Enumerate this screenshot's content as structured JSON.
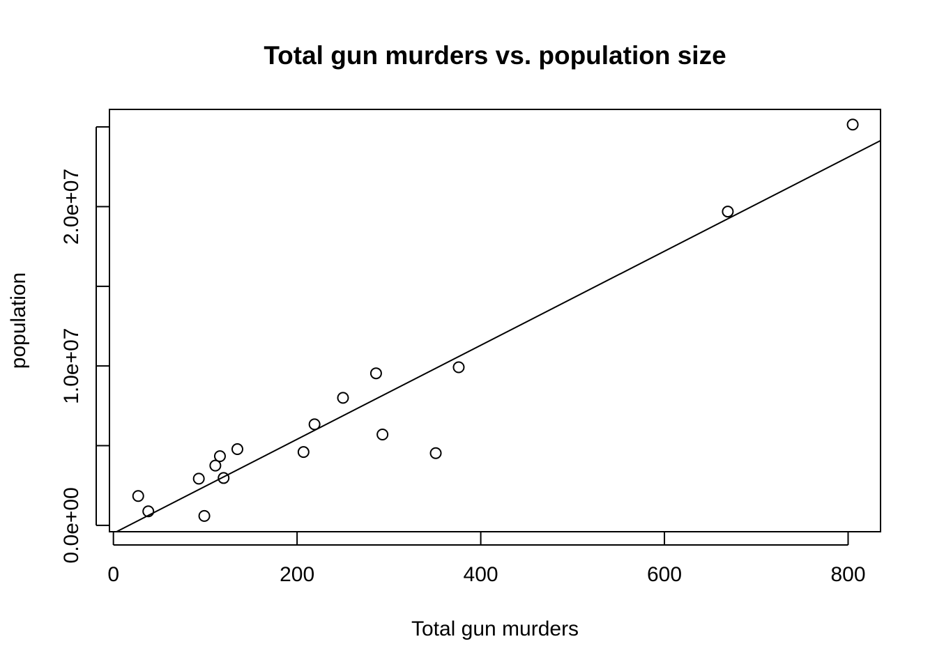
{
  "chart_data": {
    "type": "scatter",
    "title": "Total gun murders vs. population size",
    "xlabel": "Total gun murders",
    "ylabel": "population",
    "xlim": [
      -4.3,
      835.3
    ],
    "ylim": [
      -400000,
      26100000
    ],
    "x_ticks": [
      {
        "value": 0,
        "label": "0"
      },
      {
        "value": 200,
        "label": "200"
      },
      {
        "value": 400,
        "label": "400"
      },
      {
        "value": 600,
        "label": "600"
      },
      {
        "value": 800,
        "label": "800"
      }
    ],
    "y_ticks": [
      {
        "value": 0,
        "label": "0.0e+00"
      },
      {
        "value": 5000000,
        "label": ""
      },
      {
        "value": 10000000,
        "label": "1.0e+07"
      },
      {
        "value": 15000000,
        "label": ""
      },
      {
        "value": 20000000,
        "label": "2.0e+07"
      },
      {
        "value": 25000000,
        "label": ""
      }
    ],
    "points": [
      {
        "x": 27,
        "y": 1840000
      },
      {
        "x": 38,
        "y": 880000
      },
      {
        "x": 93,
        "y": 2930000
      },
      {
        "x": 99,
        "y": 590000
      },
      {
        "x": 111,
        "y": 3750000
      },
      {
        "x": 116,
        "y": 4340000
      },
      {
        "x": 120,
        "y": 2970000
      },
      {
        "x": 135,
        "y": 4780000
      },
      {
        "x": 207,
        "y": 4600000
      },
      {
        "x": 219,
        "y": 6340000
      },
      {
        "x": 250,
        "y": 8000000
      },
      {
        "x": 286,
        "y": 9540000
      },
      {
        "x": 293,
        "y": 5700000
      },
      {
        "x": 351,
        "y": 4530000
      },
      {
        "x": 376,
        "y": 9920000
      },
      {
        "x": 669,
        "y": 19690000
      },
      {
        "x": 805,
        "y": 25150000
      }
    ],
    "fit_line": {
      "intercept": -500000,
      "slope": 29500
    },
    "grid": false,
    "legend": "none"
  }
}
